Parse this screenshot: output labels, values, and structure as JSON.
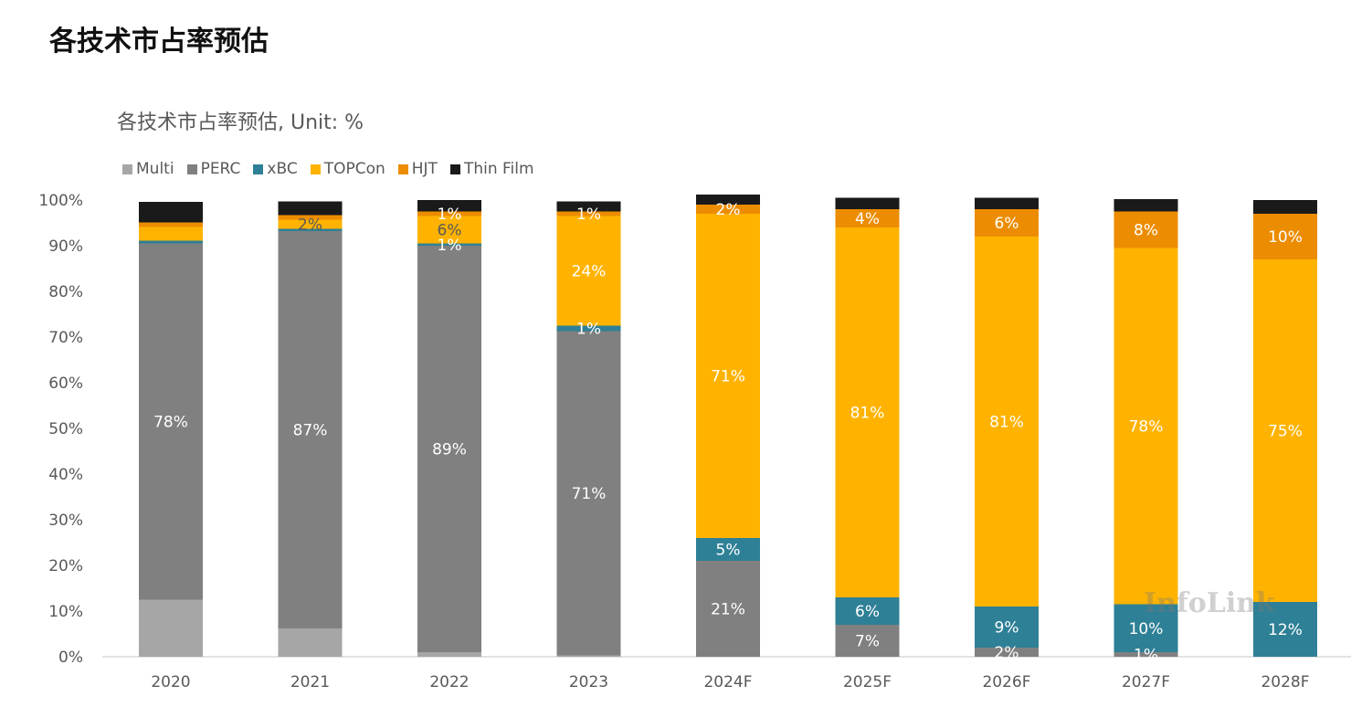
{
  "page_title": "各技术市占率预估",
  "watermark": "InfoLink",
  "chart_data": {
    "type": "bar",
    "stacked": true,
    "title": "各技术市占率预估, Unit: %",
    "xlabel": "",
    "ylabel": "",
    "ylim": [
      0,
      100
    ],
    "yticks": [
      "0%",
      "10%",
      "20%",
      "30%",
      "40%",
      "50%",
      "60%",
      "70%",
      "80%",
      "90%",
      "100%"
    ],
    "grid": false,
    "legend": "top-left",
    "categories": [
      "2020",
      "2021",
      "2022",
      "2023",
      "2024F",
      "2025F",
      "2026F",
      "2027F",
      "2028F"
    ],
    "series": [
      {
        "name": "Multi",
        "color": "#a6a6a6",
        "values": [
          12.5,
          6.2,
          1,
          0.3,
          0,
          0,
          0,
          0,
          0
        ],
        "labels": [
          null,
          null,
          null,
          null,
          null,
          null,
          null,
          null,
          null
        ]
      },
      {
        "name": "PERC",
        "color": "#808080",
        "values": [
          78,
          87,
          89,
          71,
          21,
          7,
          2,
          1,
          0
        ],
        "labels": [
          "78%",
          "87%",
          "89%",
          "71%",
          "21%",
          "7%",
          "2%",
          "1%",
          null
        ]
      },
      {
        "name": "xBC",
        "color": "#2e8096",
        "values": [
          0.6,
          0.5,
          0.5,
          1.2,
          5,
          6,
          9,
          10.5,
          12
        ],
        "labels": [
          null,
          null,
          "1%",
          "1%",
          "5%",
          "6%",
          "9%",
          "10%",
          "12%"
        ]
      },
      {
        "name": "TOPCon",
        "color": "#ffb300",
        "values": [
          3,
          2,
          6,
          24,
          71,
          81,
          81,
          78,
          75
        ],
        "labels": [
          null,
          "2%",
          "6%",
          "24%",
          "71%",
          "81%",
          "81%",
          "78%",
          "75%"
        ]
      },
      {
        "name": "HJT",
        "color": "#ec8c00",
        "values": [
          1,
          1,
          1,
          1,
          2,
          4,
          6,
          8,
          10
        ],
        "labels": [
          null,
          null,
          "1%",
          "1%",
          "2%",
          "4%",
          "6%",
          "8%",
          "10%"
        ]
      },
      {
        "name": "Thin Film",
        "color": "#1a1a1a",
        "values": [
          4.5,
          3,
          2.5,
          2.2,
          2.2,
          2.5,
          2.5,
          2.7,
          3
        ],
        "labels": [
          null,
          null,
          null,
          null,
          null,
          null,
          null,
          null,
          null
        ]
      }
    ]
  }
}
